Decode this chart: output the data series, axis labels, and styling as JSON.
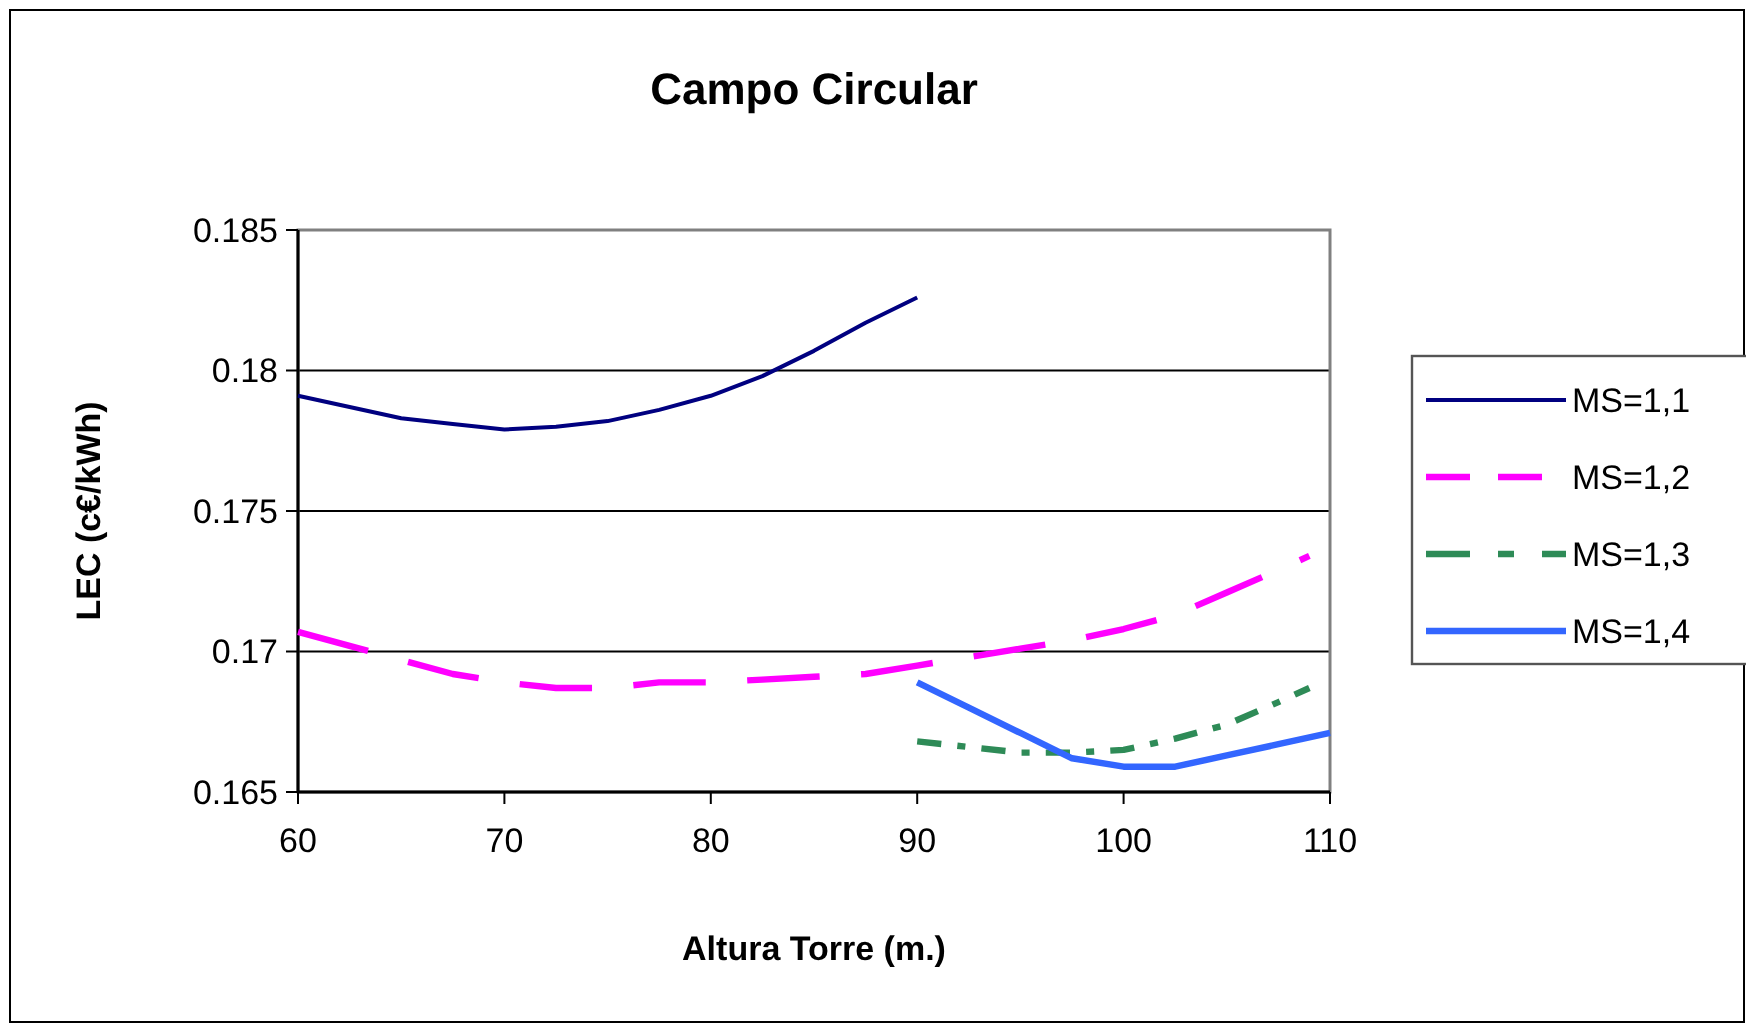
{
  "chart_data": {
    "type": "line",
    "title": "Campo Circular",
    "xlabel": "Altura Torre (m.)",
    "ylabel": "LEC (c€/kWh)",
    "xlim": [
      60,
      110
    ],
    "xticks": [
      60,
      70,
      80,
      90,
      100,
      110
    ],
    "ylim": [
      0.165,
      0.185
    ],
    "yticks": [
      0.165,
      0.17,
      0.175,
      0.18,
      0.185
    ],
    "grid": "y",
    "legend": "right",
    "marker": "none",
    "series": [
      {
        "name": "MS=1,1",
        "color": "#000080",
        "line_style": "solid",
        "x": [
          60,
          62.5,
          65,
          67.5,
          70,
          72.5,
          75,
          77.5,
          80,
          82.5,
          85,
          87.5,
          90
        ],
        "values": [
          0.1791,
          0.1787,
          0.1783,
          0.1781,
          0.1779,
          0.178,
          0.1782,
          0.1786,
          0.1791,
          0.1798,
          0.1807,
          0.1817,
          0.1826
        ]
      },
      {
        "name": "MS=1,2",
        "color": "#ff00ff",
        "line_style": "dashed",
        "x": [
          60,
          65,
          67.5,
          70,
          72.5,
          75,
          77.5,
          80,
          82.5,
          85,
          87.5,
          90,
          92.5,
          95,
          97.5,
          100,
          102.5,
          105,
          107.5,
          109
        ],
        "values": [
          0.1707,
          0.1697,
          0.1692,
          0.1689,
          0.1687,
          0.1687,
          0.1689,
          0.1689,
          0.169,
          0.1691,
          0.1692,
          0.1695,
          0.1698,
          0.1701,
          0.1704,
          0.1708,
          0.1713,
          0.1721,
          0.1729,
          0.1734
        ]
      },
      {
        "name": "MS=1,3",
        "color": "#2e8b57",
        "line_style": "dashdot",
        "x": [
          90,
          92.5,
          95,
          97.5,
          100,
          102.5,
          105,
          107.5,
          109
        ],
        "values": [
          0.1668,
          0.1666,
          0.1664,
          0.1664,
          0.1665,
          0.1669,
          0.1674,
          0.1682,
          0.1687
        ]
      },
      {
        "name": "MS=1,4",
        "color": "#3366ff",
        "line_style": "solid",
        "x": [
          90,
          92.5,
          95,
          97.5,
          100,
          102.5,
          105,
          107.5,
          110
        ],
        "values": [
          0.1689,
          0.168,
          0.1671,
          0.1662,
          0.1659,
          0.1659,
          0.1663,
          0.1667,
          0.1671
        ]
      }
    ]
  }
}
